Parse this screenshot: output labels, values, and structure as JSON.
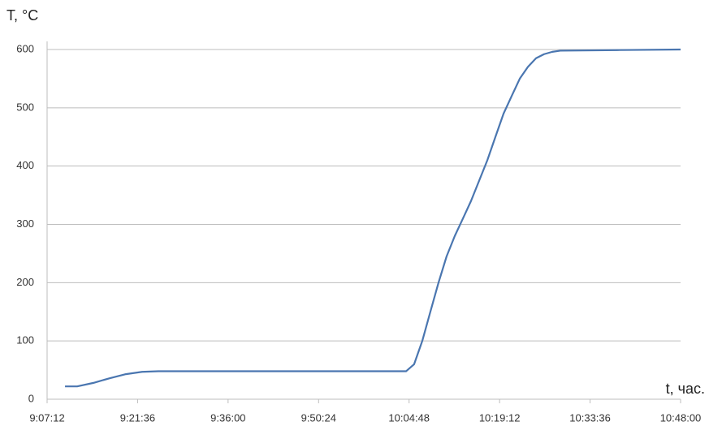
{
  "chart_data": {
    "type": "line",
    "y_label": "T, °C",
    "x_label": "t, час.",
    "x": [
      33003,
      33119,
      33274,
      33429,
      33584,
      33739,
      33894,
      36259,
      36336,
      36414,
      36491,
      36569,
      36646,
      36724,
      36802,
      36879,
      36957,
      37035,
      37112,
      37190,
      37267,
      37345,
      37422,
      37500,
      37577,
      37655,
      37732,
      38275,
      38880
    ],
    "series": [
      {
        "color": "#4a76b0",
        "values": [
          22,
          22,
          28,
          36,
          43,
          47,
          48,
          48,
          60,
          100,
          150,
          200,
          245,
          280,
          310,
          340,
          375,
          410,
          450,
          490,
          520,
          550,
          570,
          585,
          592,
          596,
          598,
          599,
          600
        ]
      }
    ],
    "xlim": [
      32832,
      38880
    ],
    "xticks": [
      {
        "value": 32832,
        "label": "9:07:12"
      },
      {
        "value": 33696,
        "label": "9:21:36"
      },
      {
        "value": 34560,
        "label": "9:36:00"
      },
      {
        "value": 35424,
        "label": "9:50:24"
      },
      {
        "value": 36288,
        "label": "10:04:48"
      },
      {
        "value": 37152,
        "label": "10:19:12"
      },
      {
        "value": 38016,
        "label": "10:33:36"
      },
      {
        "value": 38880,
        "label": "10:48:00"
      }
    ],
    "ylim": [
      0,
      600
    ],
    "yticks": [
      0,
      100,
      200,
      300,
      400,
      500,
      600
    ],
    "grid": true
  }
}
